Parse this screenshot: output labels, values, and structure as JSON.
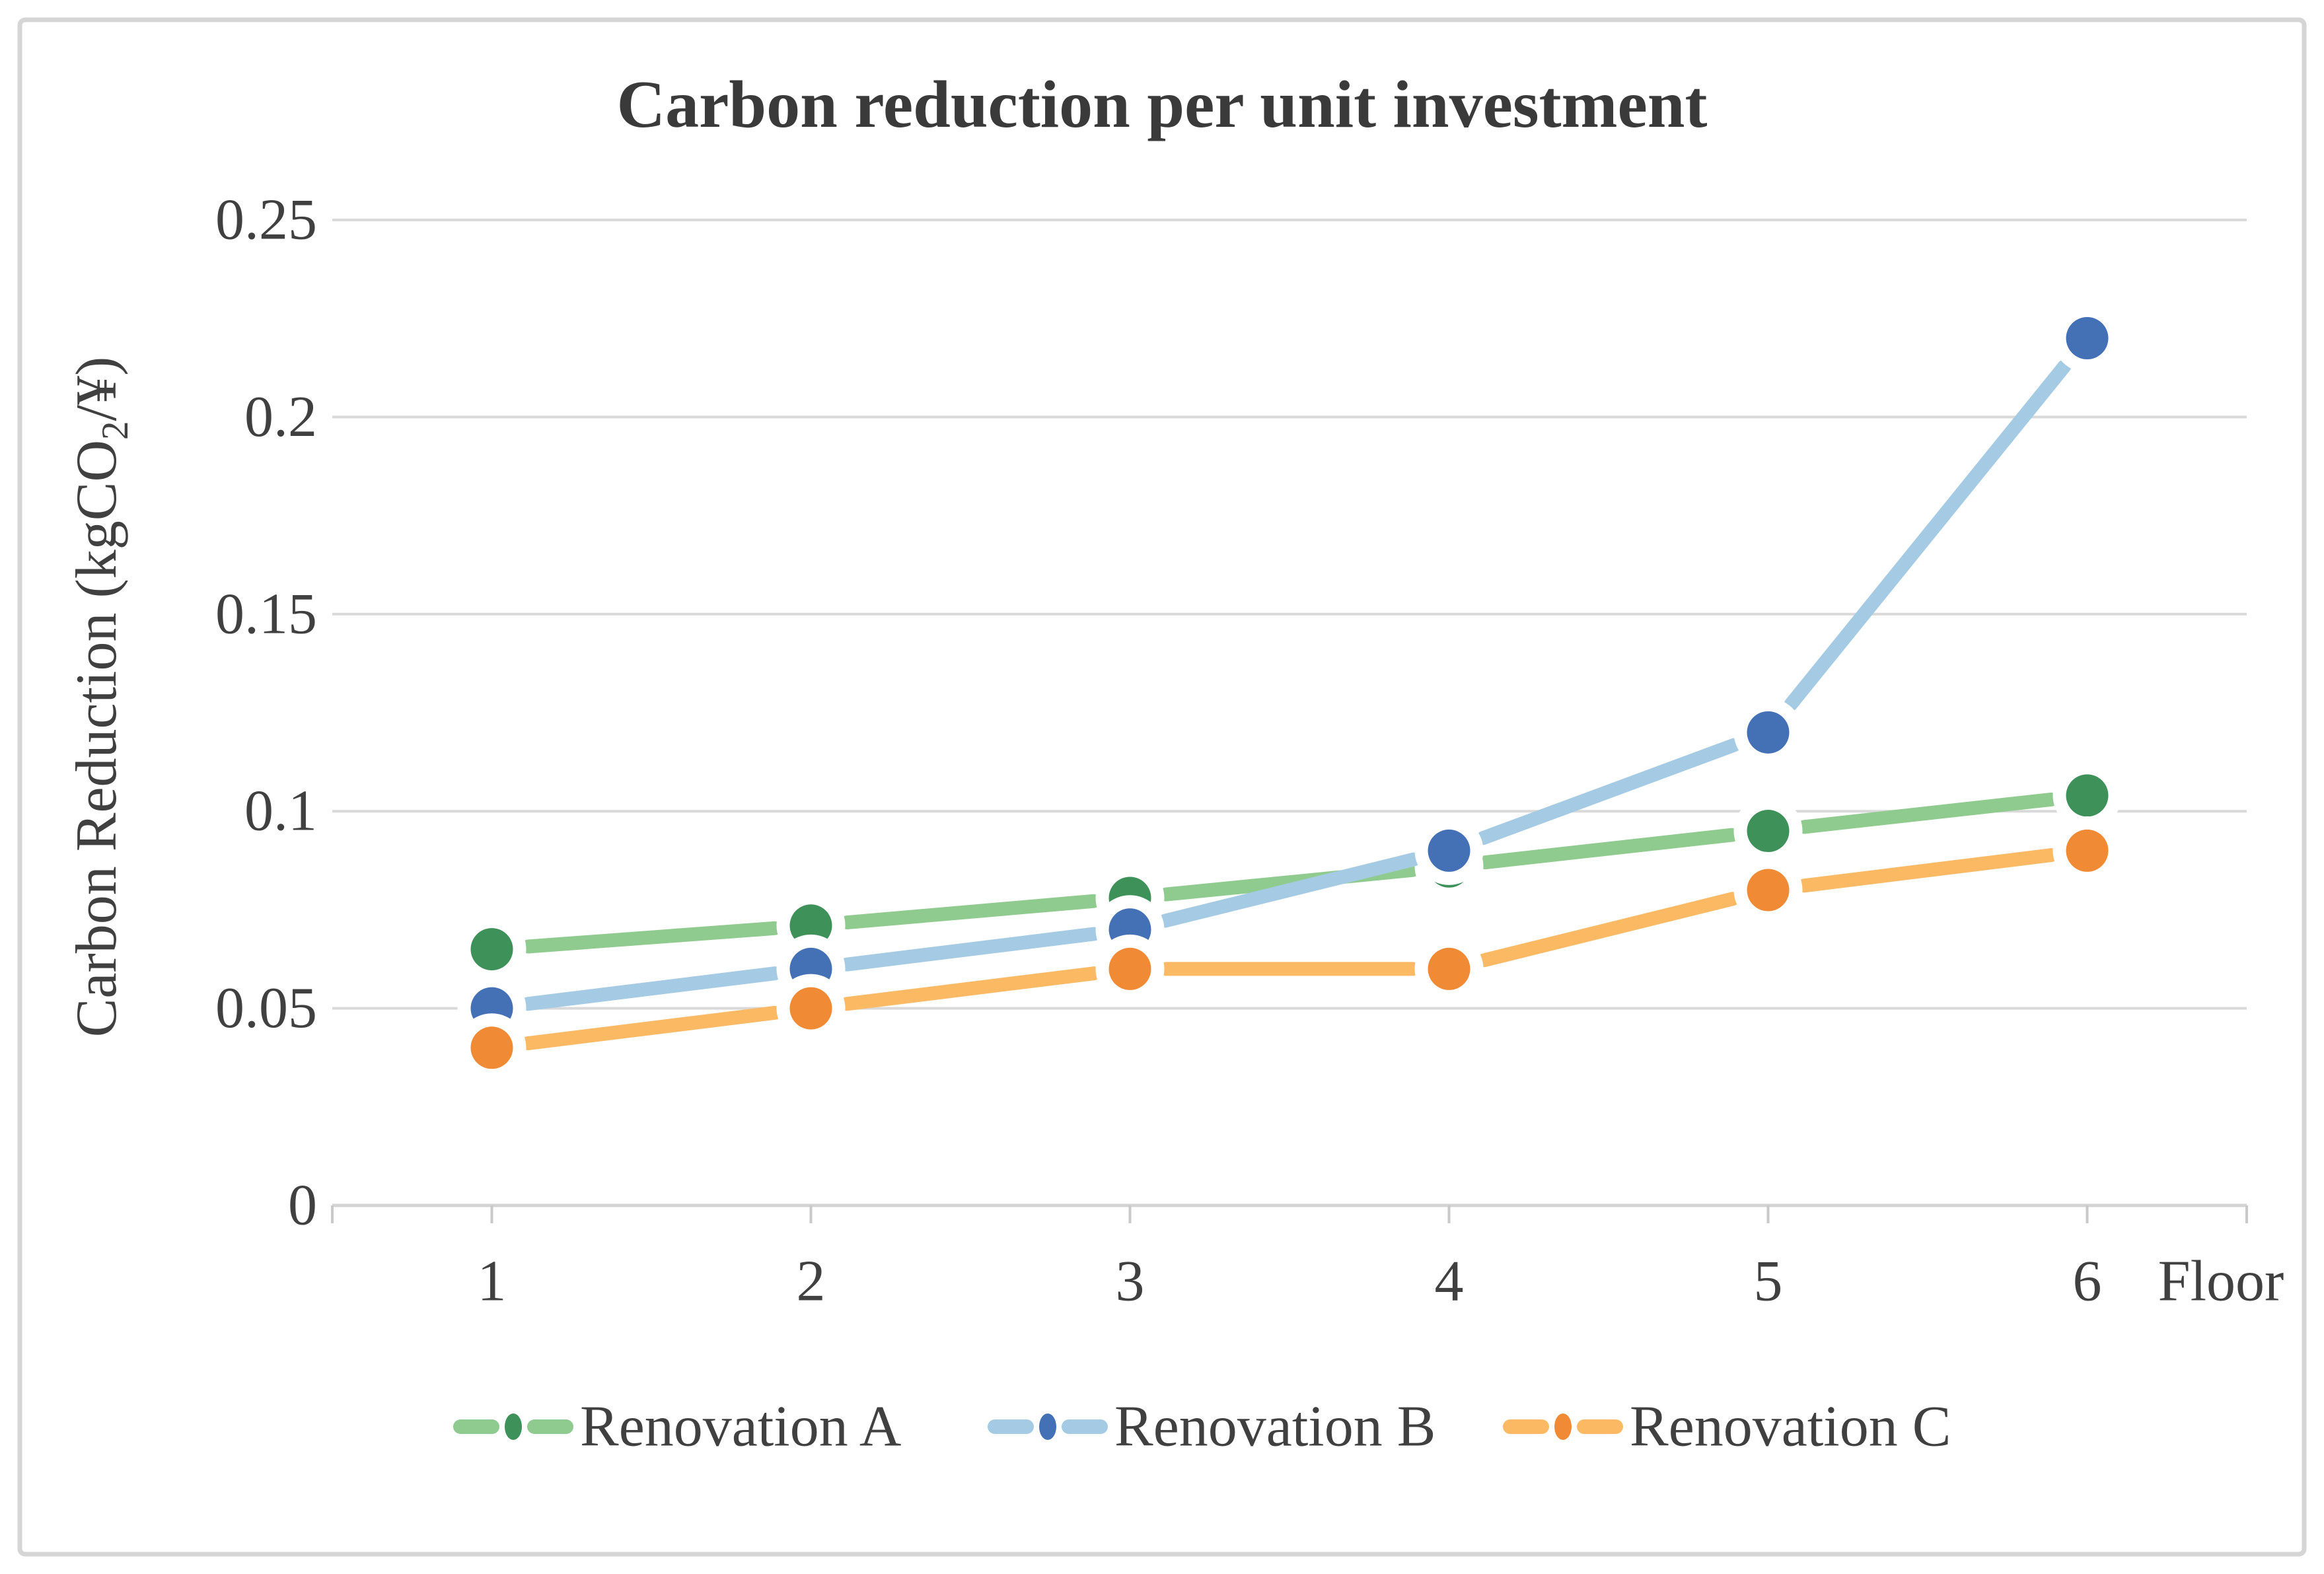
{
  "chart_data": {
    "type": "line",
    "title": "Carbon reduction per unit investment",
    "x": [
      "1",
      "2",
      "3",
      "4",
      "5",
      "6"
    ],
    "xlabel": "Floor",
    "ylabel": "Carbon Reduction (kgCO2/¥)",
    "ylabel_parts": {
      "prefix": "Carbon Reduction (kgCO",
      "sub": "2",
      "suffix": "/¥)"
    },
    "ylim": [
      0,
      0.25
    ],
    "yticks": [
      0,
      0.05,
      0.1,
      0.15,
      0.2,
      0.25
    ],
    "ytick_labels": [
      "0",
      "0.05",
      "0.1",
      "0.15",
      "0.2",
      "0.25"
    ],
    "grid": true,
    "legend_position": "bottom",
    "series": [
      {
        "name": "Renovation A",
        "values": [
          0.065,
          0.071,
          0.078,
          0.086,
          0.095,
          0.104
        ],
        "line_color": "#8FCB8F",
        "marker_color": "#3E9159"
      },
      {
        "name": "Renovation B",
        "values": [
          0.05,
          0.06,
          0.07,
          0.09,
          0.12,
          0.22
        ],
        "line_color": "#A5CBE4",
        "marker_color": "#4471B5"
      },
      {
        "name": "Renovation C",
        "values": [
          0.04,
          0.05,
          0.06,
          0.06,
          0.08,
          0.09
        ],
        "line_color": "#FBB964",
        "marker_color": "#F18A34"
      }
    ],
    "colors": {
      "grid": "#D9D9D9",
      "axis_line": "#D3D3D3",
      "tick_mark": "#C9C9C9",
      "text": "#404040",
      "title_text": "#3A3A3A",
      "border": "#D5D5D5",
      "marker_halo": "#FFFFFF",
      "background": "#FFFFFF"
    }
  }
}
